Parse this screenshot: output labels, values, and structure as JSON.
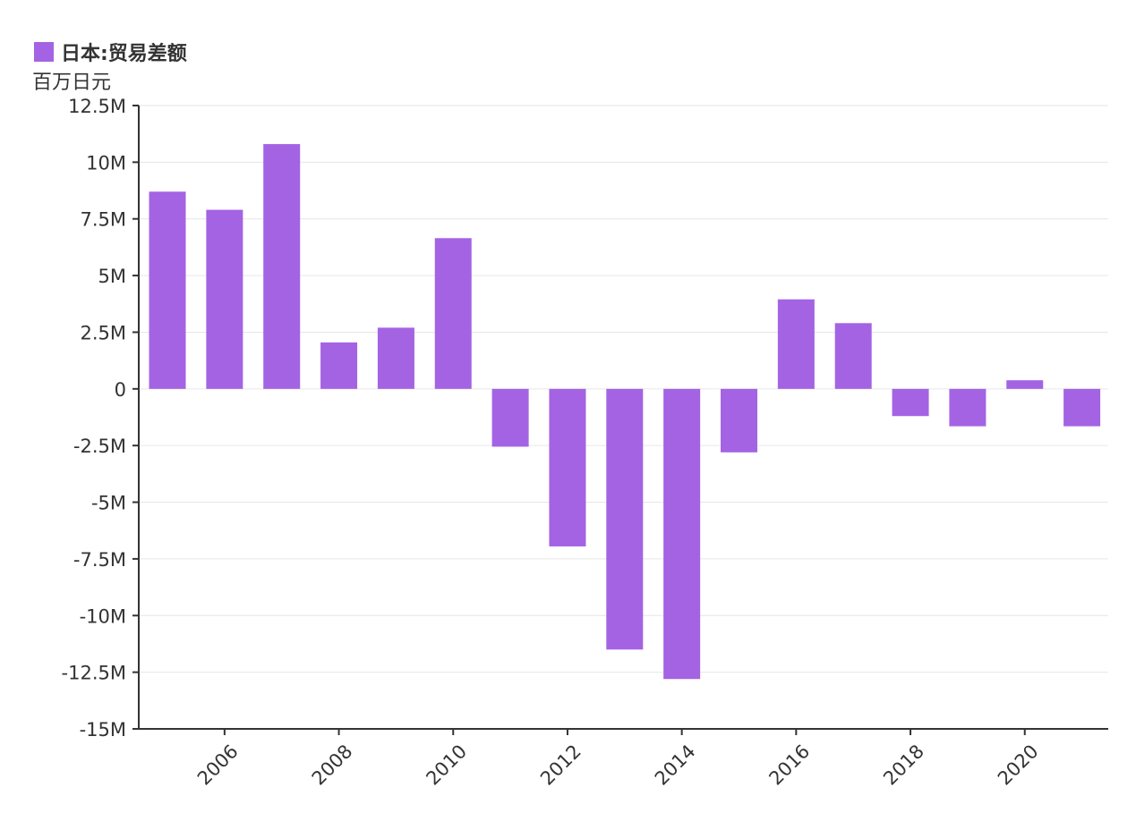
{
  "legend": {
    "label": "日本:贸易差额",
    "color": "#a463e3"
  },
  "unit": "百万日元",
  "chart_data": {
    "type": "bar",
    "title": "日本:贸易差额",
    "ylabel": "百万日元",
    "xlabel": "",
    "grid": true,
    "legend_position": "top-left",
    "ylim": [
      -15,
      12.5
    ],
    "y_ticks": [
      12.5,
      10,
      7.5,
      5,
      2.5,
      0,
      -2.5,
      -5,
      -7.5,
      -10,
      -12.5,
      -15
    ],
    "y_tick_labels": [
      "12.5M",
      "10M",
      "7.5M",
      "5M",
      "2.5M",
      "0",
      "-2.5M",
      "-5M",
      "-7.5M",
      "-10M",
      "-12.5M",
      "-15M"
    ],
    "x_tick_labels": [
      "2006",
      "2008",
      "2010",
      "2012",
      "2014",
      "2016",
      "2018",
      "2020"
    ],
    "categories": [
      "2005",
      "2006",
      "2007",
      "2008",
      "2009",
      "2010",
      "2011",
      "2012",
      "2013",
      "2014",
      "2015",
      "2016",
      "2017",
      "2018",
      "2019",
      "2020",
      "2021"
    ],
    "series": [
      {
        "name": "日本:贸易差额",
        "color": "#a463e3",
        "values": [
          8.7,
          7.9,
          10.8,
          2.05,
          2.7,
          6.65,
          -2.55,
          -6.95,
          -11.5,
          -12.8,
          -2.8,
          3.95,
          2.9,
          -1.2,
          -1.65,
          0.38,
          -1.65
        ]
      }
    ]
  }
}
